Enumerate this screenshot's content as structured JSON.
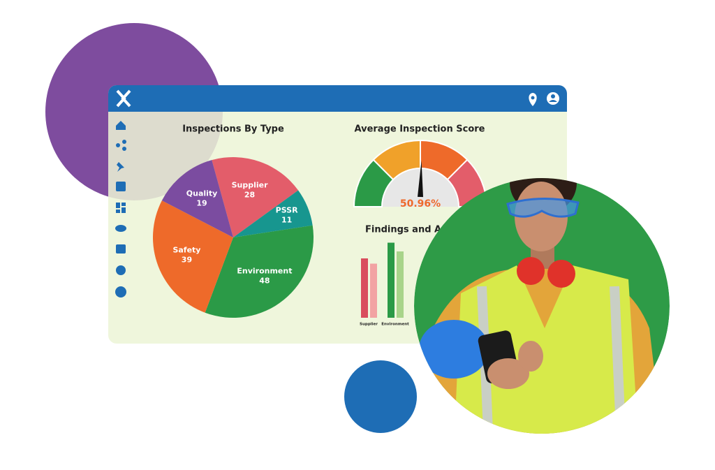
{
  "chart_data": [
    {
      "type": "pie",
      "title": "Inspections By Type",
      "categories": [
        "Supplier",
        "PSSR",
        "Environment",
        "Safety",
        "Quality"
      ],
      "values": [
        28,
        11,
        48,
        39,
        19
      ],
      "colors": [
        "#e35d6a",
        "#17968f",
        "#2b9a47",
        "#ee6a2a",
        "#7b4ca0"
      ]
    },
    {
      "type": "gauge",
      "title": "Average Inspection Score",
      "values": [
        50.96
      ],
      "value_labels": [
        "50.96%"
      ],
      "ylim": [
        0,
        100
      ],
      "colors": [
        "#2b9a47",
        "#f0a12a",
        "#ee6a2a",
        "#e35d6a"
      ]
    },
    {
      "type": "bar",
      "title": "Findings and Actions",
      "categories": [
        "Supplier",
        "Environment"
      ],
      "series": [
        {
          "color": [
            "#d94c5d",
            "#2b9a47"
          ],
          "values": [
            17,
            21.5
          ]
        },
        {
          "color": [
            "#f2a3a3",
            "#a8d48a"
          ],
          "values": [
            15.5,
            19
          ]
        }
      ]
    }
  ]
}
